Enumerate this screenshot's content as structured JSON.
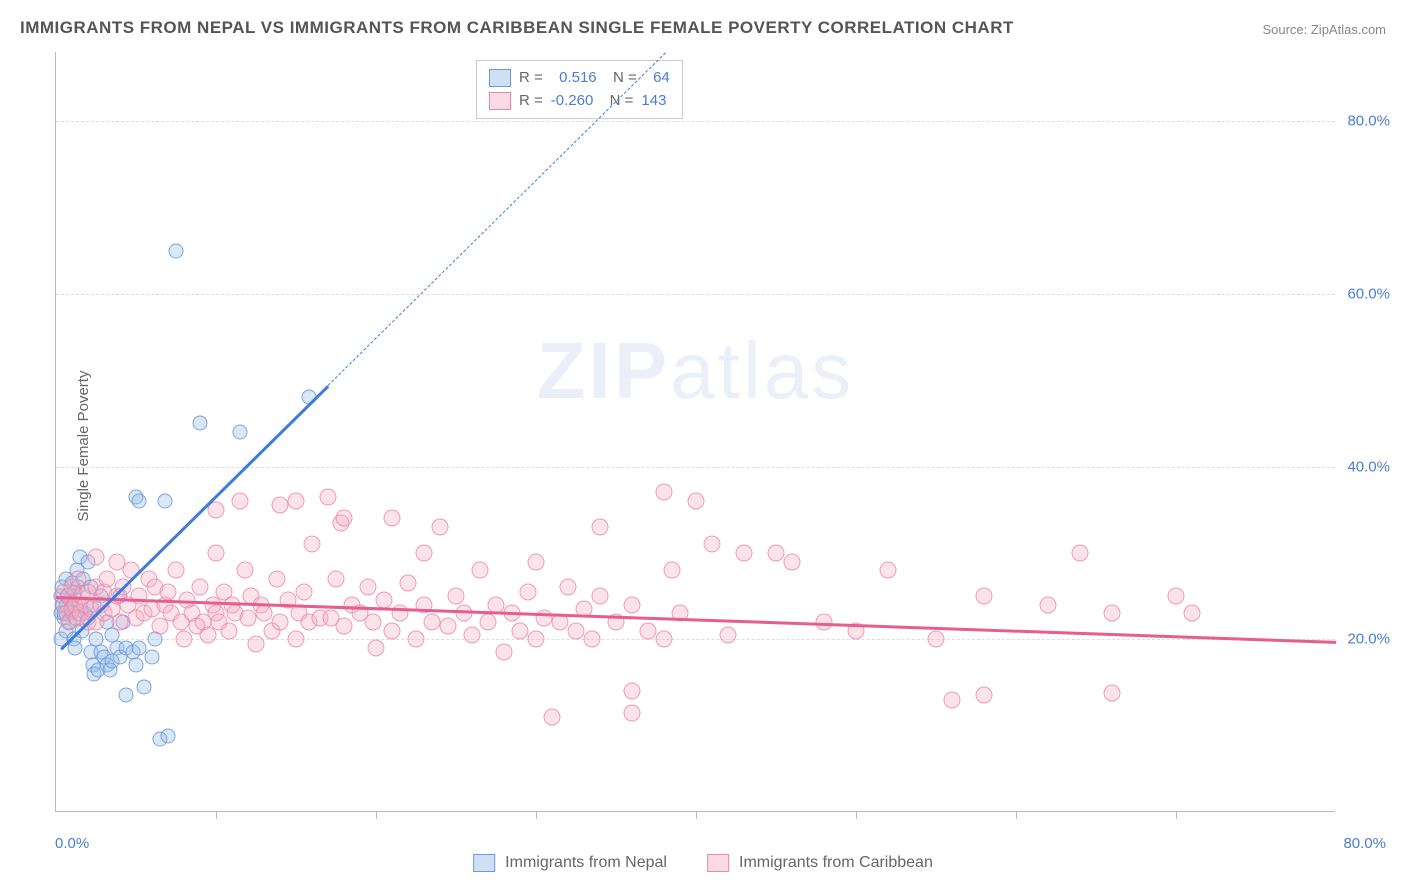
{
  "title": "IMMIGRANTS FROM NEPAL VS IMMIGRANTS FROM CARIBBEAN SINGLE FEMALE POVERTY CORRELATION CHART",
  "source": "Source: ZipAtlas.com",
  "ylabel": "Single Female Poverty",
  "watermark_bold": "ZIP",
  "watermark_light": "atlas",
  "chart": {
    "type": "scatter",
    "xlim": [
      0,
      80
    ],
    "ylim": [
      0,
      88
    ],
    "xlim_labels": [
      "0.0%",
      "80.0%"
    ],
    "ytick_positions": [
      20,
      40,
      60,
      80
    ],
    "ytick_labels": [
      "20.0%",
      "40.0%",
      "60.0%",
      "80.0%"
    ],
    "xtick_positions": [
      10,
      20,
      30,
      40,
      50,
      60,
      70
    ],
    "grid_color": "#dddddd",
    "background_color": "#ffffff",
    "axis_color": "#bbbbbb",
    "label_color": "#4a7dd4",
    "title_color": "#555555",
    "title_fontsize": 17,
    "label_fontsize": 15,
    "marker_size_blue": 15,
    "marker_size_pink": 17,
    "series": [
      {
        "name": "Immigrants from Nepal",
        "color_fill": "rgba(150,185,230,0.35)",
        "color_stroke": "#6a9be0",
        "R": "0.516",
        "N": "64",
        "trend": {
          "x1": 0.3,
          "y1": 19,
          "x2": 17,
          "y2": 49.5,
          "extend_to_x": 31,
          "color": "#3d7be0"
        },
        "points": [
          [
            0.3,
            23
          ],
          [
            0.4,
            24
          ],
          [
            0.5,
            22.5
          ],
          [
            0.3,
            25
          ],
          [
            0.3,
            20
          ],
          [
            0.4,
            26
          ],
          [
            0.6,
            24
          ],
          [
            0.5,
            23
          ],
          [
            0.7,
            25
          ],
          [
            0.6,
            27
          ],
          [
            0.6,
            21
          ],
          [
            0.8,
            22
          ],
          [
            0.9,
            24.5
          ],
          [
            1,
            26.5
          ],
          [
            1,
            23
          ],
          [
            1.1,
            20
          ],
          [
            1.2,
            25.5
          ],
          [
            1.2,
            22.5
          ],
          [
            1.3,
            28
          ],
          [
            1.4,
            26
          ],
          [
            1.2,
            19
          ],
          [
            1.5,
            24
          ],
          [
            1.6,
            21
          ],
          [
            1.5,
            29.5
          ],
          [
            1.7,
            27
          ],
          [
            1.8,
            23
          ],
          [
            2,
            22.5
          ],
          [
            2,
            29
          ],
          [
            2.2,
            26
          ],
          [
            2.4,
            24
          ],
          [
            2.2,
            18.5
          ],
          [
            2.5,
            20
          ],
          [
            2.3,
            17
          ],
          [
            2.4,
            16
          ],
          [
            2.8,
            18.5
          ],
          [
            2.6,
            16.5
          ],
          [
            3,
            18
          ],
          [
            2.8,
            25
          ],
          [
            3.2,
            22
          ],
          [
            3.5,
            20.5
          ],
          [
            3.2,
            17
          ],
          [
            3.4,
            16.5
          ],
          [
            3.8,
            19
          ],
          [
            3.5,
            17.5
          ],
          [
            4,
            18
          ],
          [
            4,
            25
          ],
          [
            4.2,
            22
          ],
          [
            4.4,
            19
          ],
          [
            4.4,
            13.5
          ],
          [
            4.8,
            18.5
          ],
          [
            5,
            17
          ],
          [
            5.2,
            19
          ],
          [
            5,
            36.5
          ],
          [
            5.2,
            36
          ],
          [
            5.5,
            14.5
          ],
          [
            6,
            18
          ],
          [
            6.2,
            20
          ],
          [
            6.5,
            8.5
          ],
          [
            7,
            8.8
          ],
          [
            7.5,
            65
          ],
          [
            6.8,
            36
          ],
          [
            9,
            45
          ],
          [
            11.5,
            44
          ],
          [
            15.8,
            48
          ]
        ]
      },
      {
        "name": "Immigrants from Caribbean",
        "color_fill": "rgba(245,175,195,0.35)",
        "color_stroke": "#e88aa8",
        "R": "-0.260",
        "N": "143",
        "trend": {
          "x1": 0,
          "y1": 25,
          "x2": 80,
          "y2": 19.8,
          "color": "#e85d8f"
        },
        "points": [
          [
            0.5,
            24
          ],
          [
            0.5,
            25.5
          ],
          [
            0.7,
            23
          ],
          [
            0.8,
            25
          ],
          [
            0.8,
            22
          ],
          [
            1,
            23.5
          ],
          [
            1,
            26
          ],
          [
            1.2,
            24
          ],
          [
            1.3,
            22.5
          ],
          [
            1.4,
            27
          ],
          [
            1.5,
            23
          ],
          [
            1.6,
            25
          ],
          [
            1.8,
            24
          ],
          [
            2,
            22
          ],
          [
            2,
            25.5
          ],
          [
            2.2,
            23.5
          ],
          [
            2.5,
            26
          ],
          [
            2.5,
            22
          ],
          [
            2.5,
            29.5
          ],
          [
            2.8,
            24
          ],
          [
            3,
            23
          ],
          [
            3,
            25.5
          ],
          [
            3.2,
            27
          ],
          [
            3.5,
            23.5
          ],
          [
            3.8,
            25
          ],
          [
            3.8,
            29
          ],
          [
            4,
            22
          ],
          [
            4.2,
            26
          ],
          [
            4.5,
            24
          ],
          [
            4.7,
            28
          ],
          [
            5,
            22.5
          ],
          [
            5.2,
            25
          ],
          [
            5.5,
            23
          ],
          [
            5.8,
            27
          ],
          [
            6,
            23.5
          ],
          [
            6.2,
            26
          ],
          [
            6.5,
            21.5
          ],
          [
            6.8,
            24
          ],
          [
            7,
            25.5
          ],
          [
            7.2,
            23
          ],
          [
            7.5,
            28
          ],
          [
            7.8,
            22
          ],
          [
            8,
            20
          ],
          [
            8.2,
            24.5
          ],
          [
            8.5,
            23
          ],
          [
            8.8,
            21.5
          ],
          [
            9,
            26
          ],
          [
            9.2,
            22
          ],
          [
            9.5,
            20.5
          ],
          [
            9.8,
            24
          ],
          [
            10,
            23
          ],
          [
            10,
            35
          ],
          [
            10,
            30
          ],
          [
            10.2,
            22
          ],
          [
            10.5,
            25.5
          ],
          [
            10.8,
            21
          ],
          [
            11,
            24
          ],
          [
            11.2,
            23
          ],
          [
            11.5,
            36
          ],
          [
            11.8,
            28
          ],
          [
            12,
            22.5
          ],
          [
            12.2,
            25
          ],
          [
            12.5,
            19.5
          ],
          [
            12.8,
            24
          ],
          [
            13,
            23
          ],
          [
            13.5,
            21
          ],
          [
            13.8,
            27
          ],
          [
            14,
            22
          ],
          [
            14,
            35.5
          ],
          [
            14.5,
            24.5
          ],
          [
            15,
            20
          ],
          [
            15.2,
            23
          ],
          [
            15,
            36
          ],
          [
            15.5,
            25.5
          ],
          [
            15.8,
            22
          ],
          [
            16,
            31
          ],
          [
            16.5,
            22.5
          ],
          [
            17,
            36.5
          ],
          [
            17.2,
            22.5
          ],
          [
            17.5,
            27
          ],
          [
            17.8,
            33.5
          ],
          [
            18,
            21.5
          ],
          [
            18.5,
            24
          ],
          [
            18,
            34
          ],
          [
            19,
            23
          ],
          [
            19.5,
            26
          ],
          [
            19.8,
            22
          ],
          [
            20,
            19
          ],
          [
            20.5,
            24.5
          ],
          [
            21,
            21
          ],
          [
            21,
            34
          ],
          [
            21.5,
            23
          ],
          [
            22,
            26.5
          ],
          [
            22.5,
            20
          ],
          [
            23,
            24
          ],
          [
            23,
            30
          ],
          [
            23.5,
            22
          ],
          [
            24,
            33
          ],
          [
            24.5,
            21.5
          ],
          [
            25,
            25
          ],
          [
            25.5,
            23
          ],
          [
            26,
            20.5
          ],
          [
            26.5,
            28
          ],
          [
            27,
            22
          ],
          [
            27.5,
            24
          ],
          [
            28,
            18.5
          ],
          [
            28.5,
            23
          ],
          [
            29,
            21
          ],
          [
            29.5,
            25.5
          ],
          [
            30,
            20
          ],
          [
            30,
            29
          ],
          [
            30.5,
            22.5
          ],
          [
            31,
            11
          ],
          [
            31.5,
            22
          ],
          [
            32,
            26
          ],
          [
            32.5,
            21
          ],
          [
            33,
            23.5
          ],
          [
            33.5,
            20
          ],
          [
            34,
            25
          ],
          [
            34,
            33
          ],
          [
            35,
            22
          ],
          [
            36,
            11.5
          ],
          [
            36,
            14
          ],
          [
            36,
            24
          ],
          [
            37,
            21
          ],
          [
            38,
            37
          ],
          [
            38,
            20
          ],
          [
            38.5,
            28
          ],
          [
            39,
            23
          ],
          [
            40,
            36
          ],
          [
            41,
            31
          ],
          [
            42,
            20.5
          ],
          [
            43,
            30
          ],
          [
            45,
            30
          ],
          [
            46,
            29
          ],
          [
            48,
            22
          ],
          [
            50,
            21
          ],
          [
            52,
            28
          ],
          [
            55,
            20
          ],
          [
            56,
            13
          ],
          [
            58,
            25
          ],
          [
            58,
            13.5
          ],
          [
            62,
            24
          ],
          [
            64,
            30
          ],
          [
            66,
            23
          ],
          [
            66,
            13.8
          ],
          [
            70,
            25
          ],
          [
            71,
            23
          ]
        ]
      }
    ]
  },
  "bottom_legend": [
    {
      "swatch": "blue",
      "label": "Immigrants from Nepal"
    },
    {
      "swatch": "pink",
      "label": "Immigrants from Caribbean"
    }
  ]
}
